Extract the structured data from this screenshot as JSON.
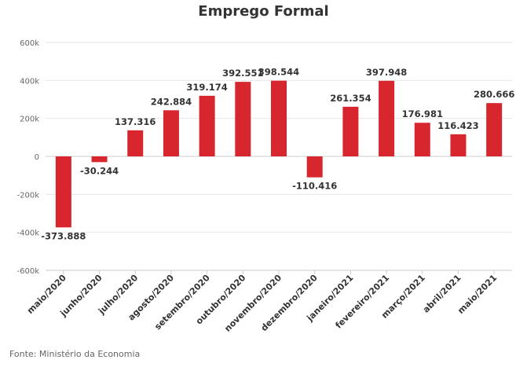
{
  "chart_data": {
    "type": "bar",
    "title": "Emprego Formal",
    "categories": [
      "maio/2020",
      "junho/2020",
      "julho/2020",
      "agosto/2020",
      "setembro/2020",
      "outubro/2020",
      "novembro/2020",
      "dezembro/2020",
      "janeiro/2021",
      "fevereiro/2021",
      "março/2021",
      "abril/2021",
      "maio/2021"
    ],
    "values": [
      -373888,
      -30244,
      137316,
      242884,
      319174,
      392551,
      398544,
      -110416,
      261354,
      397948,
      176981,
      116423,
      280666
    ],
    "data_labels": [
      "-373.888",
      "-30.244",
      "137.316",
      "242.884",
      "319.174",
      "392.551",
      "398.544",
      "-110.416",
      "261.354",
      "397.948",
      "176.981",
      "116.423",
      "280.666"
    ],
    "ylim": [
      -600000,
      600000
    ],
    "yticks": [
      600000,
      400000,
      200000,
      0,
      -200000,
      -400000,
      -600000
    ],
    "ytick_labels": [
      "600k",
      "400k",
      "200k",
      "0",
      "-200k",
      "-400k",
      "-600k"
    ],
    "grid": true,
    "bar_color": "#d7262e",
    "source": "Fonte: Ministério da Economia"
  }
}
